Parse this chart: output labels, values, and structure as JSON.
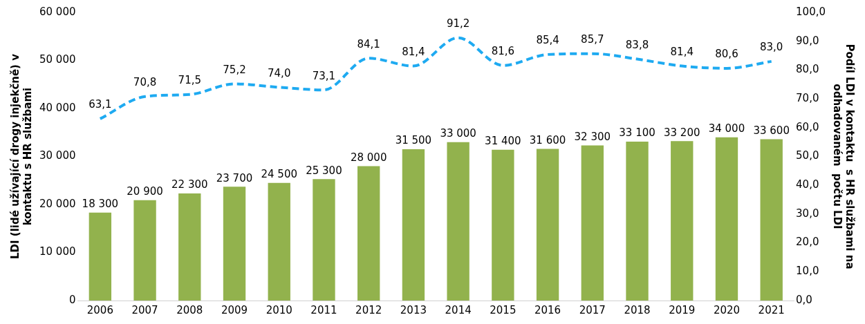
{
  "chart_data": {
    "type": "bar",
    "categories": [
      "2006",
      "2007",
      "2008",
      "2009",
      "2010",
      "2011",
      "2012",
      "2013",
      "2014",
      "2015",
      "2016",
      "2017",
      "2018",
      "2019",
      "2020",
      "2021"
    ],
    "ylabel": "LDI (lidé užívající drogy injekčně) v\nkontaktu s HR službami",
    "y2label": "Podíl LDI v kontaktu  s HR službami na\nodhadovaném  počtu LDI",
    "ylim": [
      0,
      60000
    ],
    "yticks": [
      {
        "value": 0,
        "label": "0"
      },
      {
        "value": 10000,
        "label": "10 000"
      },
      {
        "value": 20000,
        "label": "20 000"
      },
      {
        "value": 30000,
        "label": "30 000"
      },
      {
        "value": 40000,
        "label": "40 000"
      },
      {
        "value": 50000,
        "label": "50 000"
      },
      {
        "value": 60000,
        "label": "60 000"
      }
    ],
    "y2lim": [
      0,
      100
    ],
    "y2ticks": [
      {
        "value": 0,
        "label": "0,0"
      },
      {
        "value": 10,
        "label": "10,0"
      },
      {
        "value": 20,
        "label": "20,0"
      },
      {
        "value": 30,
        "label": "30,0"
      },
      {
        "value": 40,
        "label": "40,0"
      },
      {
        "value": 50,
        "label": "50,0"
      },
      {
        "value": 60,
        "label": "60,0"
      },
      {
        "value": 70,
        "label": "70,0"
      },
      {
        "value": 80,
        "label": "80,0"
      },
      {
        "value": 90,
        "label": "90,0"
      },
      {
        "value": 100,
        "label": "100,0"
      }
    ],
    "grid": false,
    "legend": false,
    "series": [
      {
        "color": "#92b24d",
        "values": [
          18300,
          20900,
          22300,
          23700,
          24500,
          25300,
          28000,
          31500,
          33000,
          31400,
          31600,
          32300,
          33100,
          33200,
          34000,
          33600
        ],
        "value_labels": [
          "18 300",
          "20 900",
          "22 300",
          "23 700",
          "24 500",
          "25 300",
          "28 000",
          "31 500",
          "33 000",
          "31 400",
          "31 600",
          "32 300",
          "33 100",
          "33 200",
          "34 000",
          "33 600"
        ]
      },
      {
        "type": "line",
        "axis": "y2",
        "color": "#1eaaf1",
        "line_style": "dashed",
        "marker": "none",
        "values": [
          63.1,
          70.8,
          71.5,
          75.2,
          74.0,
          73.1,
          84.1,
          81.4,
          91.2,
          81.6,
          85.4,
          85.7,
          83.8,
          81.4,
          80.6,
          83.0
        ],
        "value_labels": [
          "63,1",
          "70,8",
          "71,5",
          "75,2",
          "74,0",
          "73,1",
          "84,1",
          "81,4",
          "91,2",
          "81,6",
          "85,4",
          "85,7",
          "83,8",
          "81,4",
          "80,6",
          "83,0"
        ]
      }
    ]
  }
}
